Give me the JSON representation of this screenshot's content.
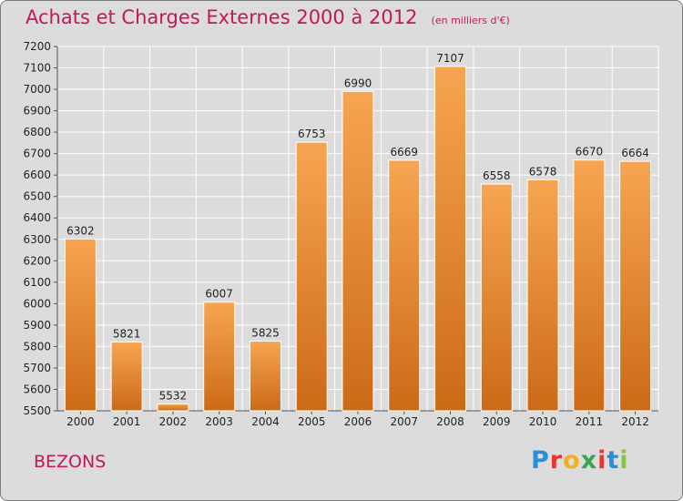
{
  "header": {
    "title": "Achats et Charges Externes 2000 à 2012",
    "subtitle": "(en milliers d'€)"
  },
  "footer": {
    "city": "BEZONS",
    "logo": "Proxiti"
  },
  "colors": {
    "title": "#c2185b",
    "bar_light": "#f7a552",
    "bar_dark": "#cc6a16",
    "background": "#dcdcdc",
    "grid": "#ffffff"
  },
  "chart_data": {
    "type": "bar",
    "title": "Achats et Charges Externes 2000 à 2012",
    "subtitle": "(en milliers d'€)",
    "categories": [
      "2000",
      "2001",
      "2002",
      "2003",
      "2004",
      "2005",
      "2006",
      "2007",
      "2008",
      "2009",
      "2010",
      "2011",
      "2012"
    ],
    "values": [
      6302,
      5821,
      5532,
      6007,
      5825,
      6753,
      6990,
      6669,
      7107,
      6558,
      6578,
      6670,
      6664
    ],
    "ylim": [
      5500,
      7200
    ],
    "yticks": [
      5500,
      5600,
      5700,
      5800,
      5900,
      6000,
      6100,
      6200,
      6300,
      6400,
      6500,
      6600,
      6700,
      6800,
      6900,
      7000,
      7100,
      7200
    ],
    "grid": true,
    "legend": "none"
  }
}
